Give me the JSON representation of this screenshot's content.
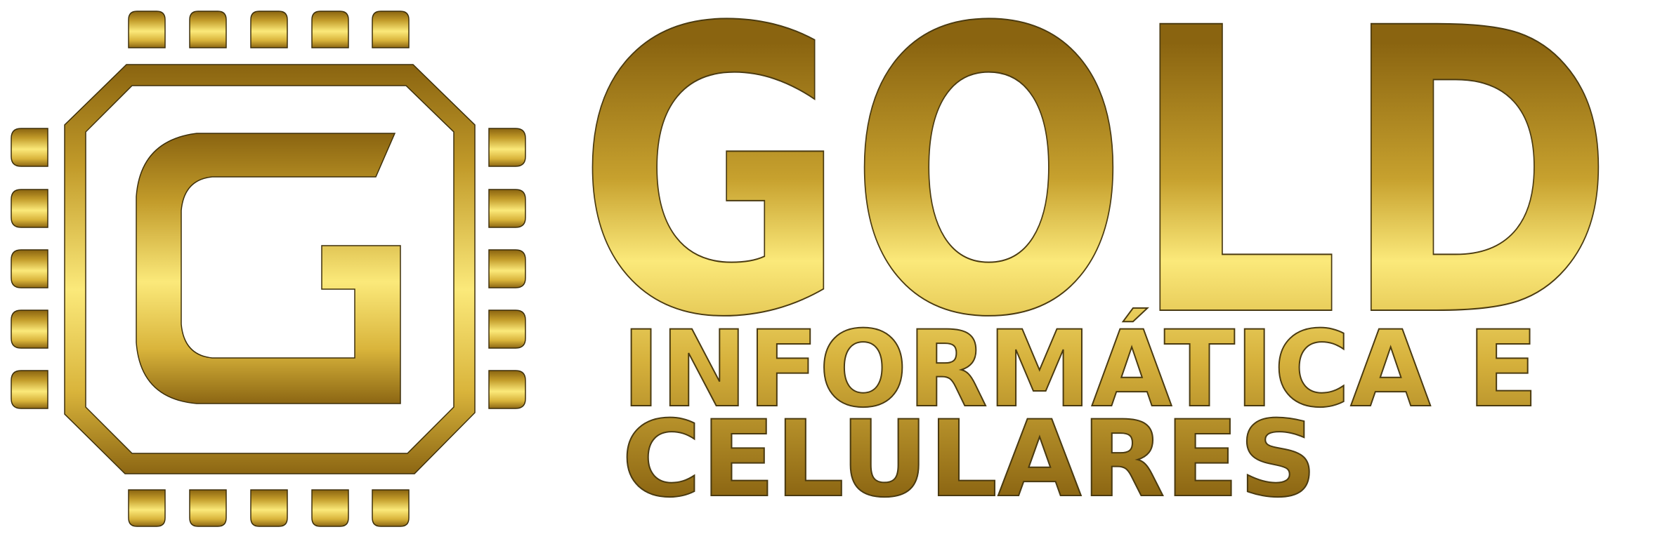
{
  "logo": {
    "brand_name": "GOLD",
    "tagline_line1": "INFORMÁTICA E",
    "tagline_line2": "CELULARES",
    "emblem_letter": "G",
    "emblem_icon": "chip-icon"
  },
  "colors": {
    "gold_dark": "#8a6410",
    "gold_mid": "#c9a227",
    "gold_light": "#fbe97a",
    "outline": "#3d2f0a",
    "background": "#ffffff"
  }
}
